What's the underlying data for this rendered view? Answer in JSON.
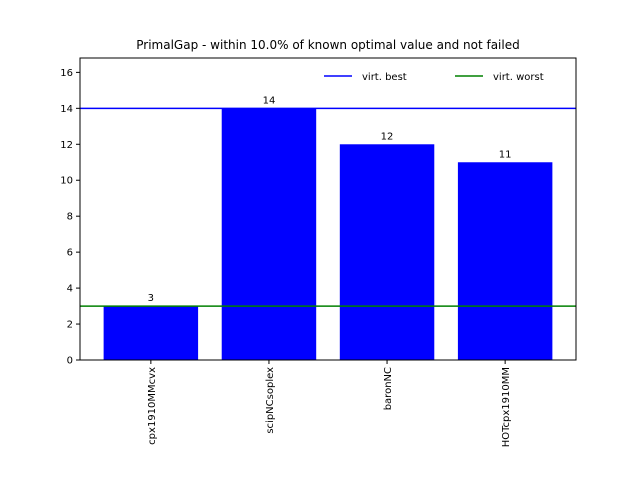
{
  "chart_data": {
    "type": "bar",
    "title": "PrimalGap - within 10.0% of known optimal value and not failed",
    "categories": [
      "cpx1910MMcvx",
      "scipNCsoplex",
      "baronNC",
      "HOTcpx1910MM"
    ],
    "values": [
      3,
      14,
      12,
      11
    ],
    "data_labels": [
      "3",
      "14",
      "12",
      "11"
    ],
    "bar_color": "#0000ff",
    "ylim": [
      0,
      16.8
    ],
    "yticks": [
      0,
      2,
      4,
      6,
      8,
      10,
      12,
      14,
      16
    ],
    "grid": false,
    "reference_lines": [
      {
        "name": "virt. best",
        "value": 14,
        "color": "#0000ff"
      },
      {
        "name": "virt. worst",
        "value": 3,
        "color": "#008000"
      }
    ],
    "legend": {
      "placement": "top-right",
      "entries": [
        "virt. best",
        "virt. worst"
      ]
    }
  }
}
